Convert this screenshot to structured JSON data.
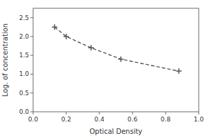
{
  "chart_data": {
    "type": "line",
    "xlabel": "Optical Density",
    "ylabel": "Log. of concentration",
    "x": [
      0.13,
      0.2,
      0.35,
      0.53,
      0.88
    ],
    "values": [
      2.25,
      2.0,
      1.7,
      1.4,
      1.08
    ],
    "xlim": [
      0,
      1.0
    ],
    "ylim": [
      0,
      2.75
    ],
    "xticks": [
      {
        "value": 0,
        "label": "0.0"
      },
      0.2,
      0.4,
      0.6,
      0.8,
      {
        "value": 1.0,
        "label": "1.0"
      }
    ],
    "yticks": [
      {
        "value": 0,
        "label": "0.0"
      },
      0.5,
      {
        "value": 1.0,
        "label": "1.0"
      },
      1.5,
      {
        "value": 2.0,
        "label": "2.0"
      },
      2.5
    ],
    "color": "#555555",
    "marker": "plus",
    "line_style": "dashed",
    "grid": false
  }
}
